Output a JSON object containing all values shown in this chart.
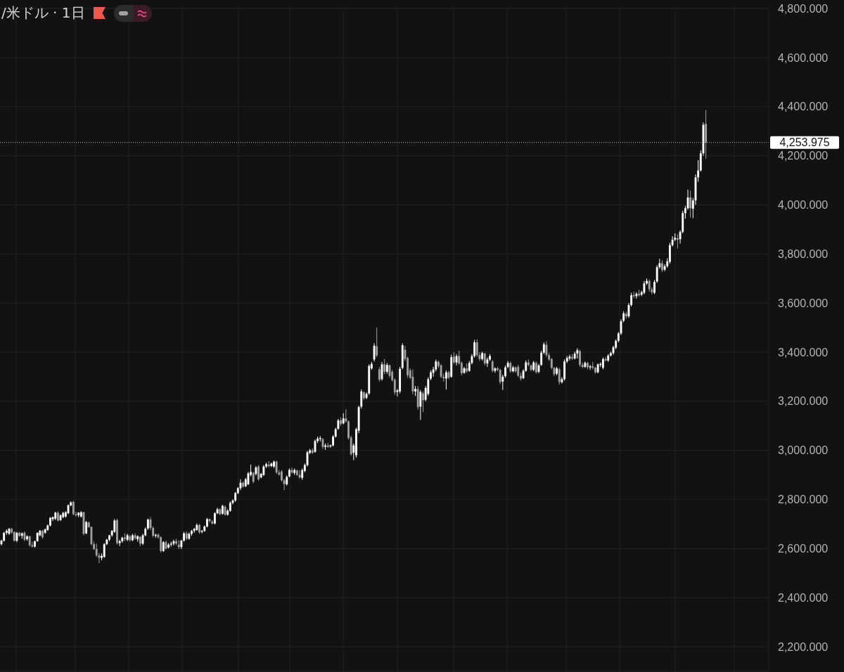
{
  "chart_data": {
    "type": "candlestick",
    "title": "/米ドル · 1日",
    "tick_labels": "y",
    "grid": true,
    "categories": [
      null,
      null,
      null,
      null,
      null,
      null,
      null,
      null,
      null,
      null,
      null,
      null,
      null,
      null,
      null,
      null,
      null,
      null,
      null,
      null,
      null,
      null,
      null,
      null,
      null,
      null,
      null,
      null,
      null,
      null,
      null,
      null,
      null,
      null,
      null,
      null,
      null,
      null,
      null,
      null,
      null,
      null,
      null,
      null,
      null,
      null,
      null,
      null,
      null,
      null,
      null,
      null,
      null,
      null,
      null,
      null,
      null,
      null,
      null,
      null,
      null,
      null,
      null,
      null,
      null,
      null,
      null,
      null,
      null,
      null,
      null,
      null,
      null,
      null,
      null,
      null,
      null,
      null,
      null,
      null,
      null,
      null,
      null,
      null,
      null,
      null,
      null,
      null,
      null,
      null,
      null,
      null,
      null,
      null,
      null,
      null,
      null,
      null,
      null,
      null,
      null,
      null,
      null,
      null,
      null,
      null,
      null,
      null,
      null,
      null,
      null,
      null,
      null,
      null,
      null,
      null,
      null,
      null,
      null,
      null,
      null,
      null,
      null,
      null,
      null,
      null,
      null,
      null,
      null,
      null,
      null,
      null,
      null,
      null,
      null,
      null,
      null,
      null,
      null,
      null,
      null,
      null,
      null,
      null,
      null,
      null,
      null,
      null,
      null,
      null,
      null,
      null,
      null,
      null,
      null,
      null,
      null,
      null,
      null,
      null,
      null,
      null,
      null,
      null,
      null,
      null,
      null,
      null,
      null,
      null,
      null,
      null,
      null,
      null,
      null,
      null,
      null,
      null,
      null,
      null,
      null,
      null,
      null,
      null,
      null,
      null,
      null,
      null,
      null,
      null,
      null,
      null,
      null,
      null,
      null,
      null,
      null,
      null,
      null,
      null,
      null,
      null,
      null,
      null,
      null,
      null,
      null,
      null,
      null,
      null,
      null,
      null,
      null,
      null,
      null,
      null,
      null,
      null,
      null,
      null,
      null,
      null,
      null,
      null,
      null,
      null,
      null,
      null,
      null,
      null,
      null,
      null,
      null,
      null,
      null,
      null,
      null,
      null,
      null,
      null,
      null,
      null,
      null,
      null,
      null,
      null,
      null,
      null,
      null,
      null,
      null,
      null,
      null,
      null,
      null,
      null,
      null,
      null,
      null,
      null,
      null,
      null,
      null,
      null,
      null,
      null,
      null,
      null,
      null,
      null,
      null,
      null,
      null,
      null,
      null,
      null,
      null,
      null,
      null,
      null,
      null,
      null,
      null,
      null,
      null,
      null,
      null,
      null,
      null,
      null,
      null,
      null,
      null,
      null,
      null,
      null,
      null,
      null,
      null
    ],
    "ohlc": [
      [
        2618,
        2636,
        2612,
        2632
      ],
      [
        2632,
        2668,
        2628,
        2664
      ],
      [
        2664,
        2678,
        2656,
        2672
      ],
      [
        2660,
        2684,
        2656,
        2680
      ],
      [
        2680,
        2684,
        2660,
        2666
      ],
      [
        2668,
        2670,
        2628,
        2632
      ],
      [
        2632,
        2668,
        2626,
        2664
      ],
      [
        2664,
        2668,
        2648,
        2652
      ],
      [
        2652,
        2666,
        2640,
        2662
      ],
      [
        2664,
        2670,
        2630,
        2636
      ],
      [
        2638,
        2654,
        2632,
        2650
      ],
      [
        2650,
        2652,
        2608,
        2614
      ],
      [
        2614,
        2628,
        2604,
        2608
      ],
      [
        2608,
        2632,
        2604,
        2630
      ],
      [
        2630,
        2666,
        2628,
        2664
      ],
      [
        2654,
        2676,
        2650,
        2672
      ],
      [
        2672,
        2676,
        2640,
        2646
      ],
      [
        2664,
        2682,
        2660,
        2678
      ],
      [
        2676,
        2698,
        2672,
        2694
      ],
      [
        2694,
        2728,
        2690,
        2725
      ],
      [
        2720,
        2730,
        2712,
        2728
      ],
      [
        2722,
        2750,
        2716,
        2746
      ],
      [
        2746,
        2752,
        2710,
        2714
      ],
      [
        2716,
        2740,
        2712,
        2735
      ],
      [
        2728,
        2750,
        2724,
        2745
      ],
      [
        2730,
        2752,
        2726,
        2748
      ],
      [
        2744,
        2780,
        2740,
        2776
      ],
      [
        2776,
        2792,
        2772,
        2788
      ],
      [
        2790,
        2794,
        2736,
        2740
      ],
      [
        2740,
        2750,
        2730,
        2736
      ],
      [
        2736,
        2748,
        2728,
        2746
      ],
      [
        2730,
        2752,
        2726,
        2748
      ],
      [
        2748,
        2750,
        2654,
        2660
      ],
      [
        2662,
        2712,
        2658,
        2708
      ],
      [
        2706,
        2710,
        2684,
        2688
      ],
      [
        2688,
        2690,
        2612,
        2618
      ],
      [
        2618,
        2628,
        2594,
        2598
      ],
      [
        2598,
        2620,
        2566,
        2572
      ],
      [
        2572,
        2582,
        2541,
        2562
      ],
      [
        2562,
        2580,
        2552,
        2570
      ],
      [
        2566,
        2622,
        2562,
        2618
      ],
      [
        2618,
        2640,
        2614,
        2636
      ],
      [
        2636,
        2656,
        2630,
        2654
      ],
      [
        2654,
        2675,
        2648,
        2672
      ],
      [
        2668,
        2720,
        2664,
        2714
      ],
      [
        2716,
        2722,
        2616,
        2622
      ],
      [
        2622,
        2636,
        2610,
        2630
      ],
      [
        2630,
        2648,
        2624,
        2644
      ],
      [
        2645,
        2662,
        2630,
        2640
      ],
      [
        2636,
        2660,
        2630,
        2654
      ],
      [
        2650,
        2656,
        2628,
        2634
      ],
      [
        2634,
        2660,
        2630,
        2654
      ],
      [
        2654,
        2662,
        2636,
        2642
      ],
      [
        2638,
        2654,
        2628,
        2650
      ],
      [
        2648,
        2650,
        2610,
        2620
      ],
      [
        2620,
        2660,
        2614,
        2654
      ],
      [
        2654,
        2686,
        2650,
        2680
      ],
      [
        2682,
        2722,
        2676,
        2718
      ],
      [
        2718,
        2728,
        2676,
        2684
      ],
      [
        2684,
        2690,
        2646,
        2652
      ],
      [
        2652,
        2660,
        2644,
        2656
      ],
      [
        2656,
        2662,
        2640,
        2646
      ],
      [
        2646,
        2650,
        2584,
        2590
      ],
      [
        2590,
        2630,
        2586,
        2626
      ],
      [
        2626,
        2632,
        2596,
        2600
      ],
      [
        2604,
        2622,
        2600,
        2616
      ],
      [
        2616,
        2628,
        2608,
        2620
      ],
      [
        2620,
        2636,
        2612,
        2630
      ],
      [
        2630,
        2640,
        2614,
        2620
      ],
      [
        2616,
        2634,
        2598,
        2606
      ],
      [
        2606,
        2636,
        2598,
        2632
      ],
      [
        2632,
        2668,
        2628,
        2662
      ],
      [
        2662,
        2670,
        2634,
        2640
      ],
      [
        2640,
        2666,
        2636,
        2660
      ],
      [
        2660,
        2676,
        2652,
        2672
      ],
      [
        2672,
        2684,
        2664,
        2680
      ],
      [
        2676,
        2702,
        2672,
        2696
      ],
      [
        2696,
        2700,
        2660,
        2666
      ],
      [
        2668,
        2676,
        2662,
        2672
      ],
      [
        2672,
        2694,
        2668,
        2690
      ],
      [
        2690,
        2724,
        2686,
        2720
      ],
      [
        2720,
        2722,
        2706,
        2712
      ],
      [
        2710,
        2716,
        2698,
        2702
      ],
      [
        2702,
        2748,
        2698,
        2744
      ],
      [
        2744,
        2766,
        2740,
        2760
      ],
      [
        2760,
        2764,
        2736,
        2740
      ],
      [
        2742,
        2778,
        2738,
        2774
      ],
      [
        2770,
        2776,
        2734,
        2738
      ],
      [
        2738,
        2760,
        2734,
        2754
      ],
      [
        2754,
        2792,
        2750,
        2786
      ],
      [
        2786,
        2800,
        2780,
        2796
      ],
      [
        2796,
        2830,
        2790,
        2826
      ],
      [
        2826,
        2850,
        2822,
        2846
      ],
      [
        2846,
        2882,
        2838,
        2868
      ],
      [
        2868,
        2874,
        2848,
        2852
      ],
      [
        2854,
        2888,
        2850,
        2882
      ],
      [
        2862,
        2912,
        2858,
        2906
      ],
      [
        2900,
        2942,
        2894,
        2912
      ],
      [
        2908,
        2912,
        2866,
        2872
      ],
      [
        2904,
        2936,
        2898,
        2930
      ],
      [
        2934,
        2940,
        2876,
        2882
      ],
      [
        2890,
        2908,
        2886,
        2904
      ],
      [
        2900,
        2940,
        2896,
        2934
      ],
      [
        2934,
        2950,
        2928,
        2944
      ],
      [
        2942,
        2956,
        2930,
        2936
      ],
      [
        2936,
        2950,
        2932,
        2946
      ],
      [
        2934,
        2958,
        2928,
        2954
      ],
      [
        2954,
        2958,
        2904,
        2910
      ],
      [
        2910,
        2920,
        2896,
        2902
      ],
      [
        2914,
        2920,
        2872,
        2878
      ],
      [
        2878,
        2884,
        2838,
        2862
      ],
      [
        2862,
        2898,
        2856,
        2892
      ],
      [
        2894,
        2926,
        2890,
        2920
      ],
      [
        2920,
        2930,
        2904,
        2910
      ],
      [
        2908,
        2926,
        2900,
        2920
      ],
      [
        2918,
        2922,
        2896,
        2900
      ],
      [
        2900,
        2920,
        2884,
        2890
      ],
      [
        2888,
        2926,
        2880,
        2920
      ],
      [
        2916,
        2946,
        2910,
        2940
      ],
      [
        2940,
        2998,
        2934,
        2992
      ],
      [
        2990,
        3006,
        2984,
        3000
      ],
      [
        3000,
        3008,
        2986,
        2990
      ],
      [
        2994,
        3044,
        2990,
        3038
      ],
      [
        3038,
        3056,
        3030,
        3048
      ],
      [
        3046,
        3058,
        3036,
        3050
      ],
      [
        3046,
        3050,
        3006,
        3014
      ],
      [
        3014,
        3028,
        3002,
        3020
      ],
      [
        3020,
        3030,
        3010,
        3014
      ],
      [
        3016,
        3024,
        3010,
        3020
      ],
      [
        3020,
        3062,
        3016,
        3056
      ],
      [
        3056,
        3092,
        3052,
        3086
      ],
      [
        3088,
        3128,
        3084,
        3122
      ],
      [
        3122,
        3134,
        3100,
        3108
      ],
      [
        3110,
        3152,
        3106,
        3130
      ],
      [
        3130,
        3167,
        3112,
        3118
      ],
      [
        3118,
        3122,
        3044,
        3050
      ],
      [
        3052,
        3060,
        2978,
        2984
      ],
      [
        2990,
        3028,
        2960,
        3020
      ],
      [
        2980,
        3092,
        2970,
        3086
      ],
      [
        3080,
        3182,
        3070,
        3176
      ],
      [
        3178,
        3248,
        3170,
        3240
      ],
      [
        3236,
        3240,
        3206,
        3212
      ],
      [
        3214,
        3236,
        3208,
        3230
      ],
      [
        3232,
        3350,
        3226,
        3344
      ],
      [
        3334,
        3360,
        3328,
        3352
      ],
      [
        3370,
        3436,
        3362,
        3426
      ],
      [
        3424,
        3500,
        3380,
        3386
      ],
      [
        3330,
        3340,
        3280,
        3288
      ],
      [
        3290,
        3360,
        3284,
        3350
      ],
      [
        3350,
        3372,
        3310,
        3320
      ],
      [
        3320,
        3356,
        3312,
        3348
      ],
      [
        3346,
        3350,
        3296,
        3304
      ],
      [
        3320,
        3328,
        3280,
        3286
      ],
      [
        3288,
        3294,
        3226,
        3236
      ],
      [
        3238,
        3250,
        3220,
        3244
      ],
      [
        3240,
        3340,
        3232,
        3332
      ],
      [
        3336,
        3436,
        3330,
        3428
      ],
      [
        3410,
        3426,
        3364,
        3372
      ],
      [
        3376,
        3382,
        3296,
        3306
      ],
      [
        3326,
        3334,
        3290,
        3296
      ],
      [
        3300,
        3330,
        3228,
        3240
      ],
      [
        3240,
        3262,
        3222,
        3250
      ],
      [
        3250,
        3262,
        3166,
        3176
      ],
      [
        3178,
        3246,
        3124,
        3238
      ],
      [
        3232,
        3240,
        3156,
        3204
      ],
      [
        3206,
        3262,
        3200,
        3254
      ],
      [
        3230,
        3298,
        3222,
        3290
      ],
      [
        3292,
        3326,
        3286,
        3318
      ],
      [
        3316,
        3340,
        3300,
        3330
      ],
      [
        3330,
        3370,
        3322,
        3362
      ],
      [
        3360,
        3366,
        3336,
        3344
      ],
      [
        3346,
        3352,
        3294,
        3300
      ],
      [
        3300,
        3312,
        3280,
        3294
      ],
      [
        3292,
        3326,
        3248,
        3318
      ],
      [
        3318,
        3324,
        3290,
        3296
      ],
      [
        3300,
        3390,
        3296,
        3380
      ],
      [
        3382,
        3400,
        3352,
        3358
      ],
      [
        3358,
        3392,
        3346,
        3384
      ],
      [
        3384,
        3406,
        3348,
        3354
      ],
      [
        3356,
        3362,
        3306,
        3314
      ],
      [
        3316,
        3340,
        3312,
        3334
      ],
      [
        3334,
        3354,
        3316,
        3322
      ],
      [
        3324,
        3364,
        3320,
        3356
      ],
      [
        3356,
        3392,
        3350,
        3384
      ],
      [
        3384,
        3450,
        3378,
        3440
      ],
      [
        3440,
        3452,
        3380,
        3388
      ],
      [
        3388,
        3400,
        3364,
        3372
      ],
      [
        3372,
        3402,
        3366,
        3396
      ],
      [
        3394,
        3398,
        3346,
        3354
      ],
      [
        3354,
        3378,
        3340,
        3370
      ],
      [
        3370,
        3392,
        3364,
        3384
      ],
      [
        3362,
        3368,
        3318,
        3324
      ],
      [
        3324,
        3338,
        3316,
        3334
      ],
      [
        3334,
        3340,
        3322,
        3328
      ],
      [
        3328,
        3332,
        3270,
        3278
      ],
      [
        3280,
        3308,
        3246,
        3300
      ],
      [
        3302,
        3346,
        3296,
        3338
      ],
      [
        3340,
        3364,
        3334,
        3356
      ],
      [
        3356,
        3362,
        3316,
        3322
      ],
      [
        3322,
        3344,
        3318,
        3338
      ],
      [
        3338,
        3342,
        3316,
        3322
      ],
      [
        3340,
        3348,
        3298,
        3304
      ],
      [
        3304,
        3316,
        3284,
        3292
      ],
      [
        3294,
        3330,
        3290,
        3324
      ],
      [
        3324,
        3366,
        3320,
        3358
      ],
      [
        3358,
        3370,
        3342,
        3348
      ],
      [
        3346,
        3350,
        3322,
        3328
      ],
      [
        3328,
        3364,
        3322,
        3358
      ],
      [
        3356,
        3362,
        3312,
        3318
      ],
      [
        3320,
        3352,
        3314,
        3346
      ],
      [
        3348,
        3406,
        3344,
        3398
      ],
      [
        3398,
        3440,
        3392,
        3432
      ],
      [
        3430,
        3444,
        3380,
        3388
      ],
      [
        3388,
        3396,
        3364,
        3370
      ],
      [
        3372,
        3376,
        3330,
        3336
      ],
      [
        3336,
        3340,
        3302,
        3310
      ],
      [
        3312,
        3340,
        3306,
        3334
      ],
      [
        3330,
        3336,
        3268,
        3278
      ],
      [
        3278,
        3298,
        3272,
        3290
      ],
      [
        3290,
        3370,
        3284,
        3362
      ],
      [
        3362,
        3384,
        3356,
        3376
      ],
      [
        3374,
        3390,
        3366,
        3382
      ],
      [
        3380,
        3392,
        3368,
        3374
      ],
      [
        3374,
        3402,
        3370,
        3394
      ],
      [
        3394,
        3416,
        3374,
        3408
      ],
      [
        3404,
        3410,
        3340,
        3348
      ],
      [
        3348,
        3358,
        3334,
        3340
      ],
      [
        3340,
        3362,
        3336,
        3356
      ],
      [
        3356,
        3360,
        3330,
        3338
      ],
      [
        3338,
        3348,
        3328,
        3342
      ],
      [
        3342,
        3360,
        3330,
        3336
      ],
      [
        3336,
        3340,
        3312,
        3318
      ],
      [
        3318,
        3354,
        3314,
        3350
      ],
      [
        3348,
        3358,
        3340,
        3352
      ],
      [
        3336,
        3378,
        3330,
        3372
      ],
      [
        3372,
        3380,
        3362,
        3366
      ],
      [
        3366,
        3392,
        3360,
        3386
      ],
      [
        3386,
        3402,
        3382,
        3396
      ],
      [
        3396,
        3426,
        3390,
        3420
      ],
      [
        3418,
        3452,
        3412,
        3446
      ],
      [
        3446,
        3482,
        3440,
        3476
      ],
      [
        3476,
        3534,
        3470,
        3526
      ],
      [
        3528,
        3566,
        3522,
        3558
      ],
      [
        3556,
        3564,
        3536,
        3546
      ],
      [
        3546,
        3600,
        3540,
        3592
      ],
      [
        3592,
        3642,
        3586,
        3632
      ],
      [
        3632,
        3646,
        3620,
        3628
      ],
      [
        3628,
        3644,
        3618,
        3638
      ],
      [
        3638,
        3654,
        3626,
        3632
      ],
      [
        3634,
        3650,
        3628,
        3644
      ],
      [
        3642,
        3690,
        3636,
        3680
      ],
      [
        3680,
        3700,
        3674,
        3690
      ],
      [
        3690,
        3696,
        3646,
        3656
      ],
      [
        3656,
        3664,
        3636,
        3644
      ],
      [
        3642,
        3694,
        3636,
        3686
      ],
      [
        3688,
        3754,
        3682,
        3746
      ],
      [
        3746,
        3780,
        3740,
        3762
      ],
      [
        3762,
        3774,
        3726,
        3734
      ],
      [
        3736,
        3758,
        3730,
        3750
      ],
      [
        3750,
        3782,
        3744,
        3770
      ],
      [
        3768,
        3846,
        3760,
        3836
      ],
      [
        3836,
        3872,
        3830,
        3858
      ],
      [
        3858,
        3884,
        3852,
        3866
      ],
      [
        3864,
        3880,
        3822,
        3858
      ],
      [
        3860,
        3896,
        3842,
        3890
      ],
      [
        3890,
        3976,
        3884,
        3966
      ],
      [
        3966,
        3996,
        3944,
        3986
      ],
      [
        3986,
        4062,
        3980,
        4030
      ],
      [
        4030,
        4058,
        3948,
        3986
      ],
      [
        3984,
        4028,
        3946,
        4018
      ],
      [
        4018,
        4124,
        4000,
        4112
      ],
      [
        4112,
        4182,
        4094,
        4140
      ],
      [
        4140,
        4222,
        4136,
        4210
      ],
      [
        4210,
        4336,
        4200,
        4326
      ],
      [
        4330,
        4386,
        4188,
        4254
      ],
      null,
      null,
      null,
      null,
      null,
      null,
      null,
      null,
      null,
      null,
      null,
      null,
      null,
      null,
      null,
      null,
      null,
      null,
      null,
      null,
      null,
      null,
      null,
      null
    ],
    "colors": [
      "#ffffff",
      "#ffffff",
      "#ffffff",
      "#ffffff",
      "#a0a0a0",
      "#a0a0a0",
      "#ffffff",
      "#a0a0a0",
      "#ffffff",
      "#a0a0a0",
      "#ffffff",
      "#a0a0a0",
      "#a0a0a0",
      "#ffffff",
      "#ffffff",
      "#ffffff",
      "#a0a0a0",
      "#ffffff",
      "#ffffff",
      "#ffffff",
      "#ffffff",
      "#ffffff",
      "#a0a0a0",
      "#ffffff",
      "#ffffff",
      "#ffffff",
      "#ffffff",
      "#ffffff",
      "#a0a0a0",
      "#a0a0a0",
      "#ffffff",
      "#ffffff",
      "#a0a0a0",
      "#ffffff",
      "#a0a0a0",
      "#a0a0a0",
      "#a0a0a0",
      "#a0a0a0",
      "#a0a0a0",
      "#ffffff",
      "#ffffff",
      "#ffffff",
      "#ffffff",
      "#ffffff",
      "#ffffff",
      "#a0a0a0",
      "#ffffff",
      "#ffffff",
      "#a0a0a0",
      "#ffffff",
      "#a0a0a0",
      "#ffffff",
      "#a0a0a0",
      "#ffffff",
      "#a0a0a0",
      "#ffffff",
      "#ffffff",
      "#ffffff",
      "#a0a0a0",
      "#a0a0a0",
      "#ffffff",
      "#a0a0a0",
      "#a0a0a0",
      "#ffffff",
      "#a0a0a0",
      "#ffffff",
      "#ffffff",
      "#ffffff",
      "#a0a0a0",
      "#a0a0a0",
      "#ffffff",
      "#ffffff",
      "#a0a0a0",
      "#ffffff",
      "#ffffff",
      "#ffffff",
      "#ffffff",
      "#a0a0a0",
      "#ffffff",
      "#ffffff",
      "#ffffff",
      "#a0a0a0",
      "#a0a0a0",
      "#ffffff",
      "#ffffff",
      "#a0a0a0",
      "#ffffff",
      "#a0a0a0",
      "#ffffff",
      "#ffffff",
      "#ffffff",
      "#ffffff",
      "#ffffff",
      "#ffffff",
      "#a0a0a0",
      "#ffffff",
      "#ffffff",
      "#ffffff",
      "#a0a0a0",
      "#ffffff",
      "#a0a0a0",
      "#ffffff",
      "#ffffff",
      "#ffffff",
      "#a0a0a0",
      "#ffffff",
      "#ffffff",
      "#a0a0a0",
      "#a0a0a0",
      "#a0a0a0",
      "#a0a0a0",
      "#ffffff",
      "#ffffff",
      "#a0a0a0",
      "#ffffff",
      "#a0a0a0",
      "#a0a0a0",
      "#ffffff",
      "#ffffff",
      "#ffffff",
      "#ffffff",
      "#a0a0a0",
      "#ffffff",
      "#ffffff",
      "#ffffff",
      "#a0a0a0",
      "#ffffff",
      "#a0a0a0",
      "#ffffff",
      "#ffffff",
      "#ffffff",
      "#ffffff",
      "#a0a0a0",
      "#ffffff",
      "#a0a0a0",
      "#a0a0a0",
      "#a0a0a0",
      "#ffffff",
      "#ffffff",
      "#ffffff",
      "#ffffff",
      "#a0a0a0",
      "#ffffff",
      "#ffffff",
      "#ffffff",
      "#ffffff",
      "#a0a0a0",
      "#a0a0a0",
      "#ffffff",
      "#a0a0a0",
      "#ffffff",
      "#a0a0a0",
      "#a0a0a0",
      "#a0a0a0",
      "#ffffff",
      "#ffffff",
      "#ffffff",
      "#a0a0a0",
      "#a0a0a0",
      "#a0a0a0",
      "#a0a0a0",
      "#ffffff",
      "#a0a0a0",
      "#ffffff",
      "#a0a0a0",
      "#ffffff",
      "#ffffff",
      "#ffffff",
      "#ffffff",
      "#ffffff",
      "#a0a0a0",
      "#a0a0a0",
      "#a0a0a0",
      "#ffffff",
      "#a0a0a0",
      "#ffffff",
      "#a0a0a0",
      "#ffffff",
      "#a0a0a0",
      "#a0a0a0",
      "#ffffff",
      "#a0a0a0",
      "#ffffff",
      "#ffffff",
      "#ffffff",
      "#a0a0a0",
      "#a0a0a0",
      "#ffffff",
      "#a0a0a0",
      "#ffffff",
      "#ffffff",
      "#a0a0a0",
      "#ffffff",
      "#a0a0a0",
      "#a0a0a0",
      "#ffffff",
      "#ffffff",
      "#ffffff",
      "#a0a0a0",
      "#ffffff",
      "#a0a0a0",
      "#a0a0a0",
      "#a0a0a0",
      "#ffffff",
      "#ffffff",
      "#a0a0a0",
      "#a0a0a0",
      "#ffffff",
      "#a0a0a0",
      "#ffffff",
      "#ffffff",
      "#ffffff",
      "#a0a0a0",
      "#a0a0a0",
      "#a0a0a0",
      "#a0a0a0",
      "#ffffff",
      "#a0a0a0",
      "#ffffff",
      "#ffffff",
      "#ffffff",
      "#ffffff",
      "#a0a0a0",
      "#ffffff",
      "#ffffff",
      "#a0a0a0",
      "#a0a0a0",
      "#ffffff",
      "#a0a0a0",
      "#ffffff",
      "#a0a0a0",
      "#a0a0a0",
      "#ffffff",
      "#ffffff",
      "#ffffff",
      "#a0a0a0",
      "#ffffff",
      "#ffffff",
      "#ffffff",
      "#ffffff",
      "#ffffff",
      "#ffffff",
      "#ffffff",
      "#a0a0a0",
      "#ffffff",
      "#ffffff",
      "#a0a0a0",
      "#ffffff",
      "#a0a0a0",
      "#ffffff",
      "#ffffff",
      "#ffffff",
      "#a0a0a0",
      "#a0a0a0",
      "#ffffff",
      "#ffffff",
      "#ffffff",
      "#a0a0a0",
      "#ffffff",
      "#ffffff",
      "#ffffff",
      "#ffffff",
      "#ffffff",
      "#a0a0a0",
      "#ffffff",
      "#ffffff",
      "#ffffff",
      "#ffffff",
      "#a0a0a0",
      "#ffffff",
      "#ffffff",
      "#ffffff",
      "#ffffff",
      "#ffffff",
      "#a0a0a0",
      null,
      null,
      null,
      null,
      null,
      null,
      null,
      null,
      null,
      null,
      null,
      null,
      null,
      null,
      null,
      null,
      null,
      null,
      null,
      null,
      null,
      null,
      null,
      null
    ],
    "ylim": [
      2100,
      4800
    ],
    "yticks": [
      {
        "value": 2200,
        "label": "2,200.000"
      },
      {
        "value": 2400,
        "label": "2,400.000"
      },
      {
        "value": 2600,
        "label": "2,600.000"
      },
      {
        "value": 2800,
        "label": "2,800.000"
      },
      {
        "value": 3000,
        "label": "3,000.000"
      },
      {
        "value": 3200,
        "label": "3,200.000"
      },
      {
        "value": 3400,
        "label": "3,400.000"
      },
      {
        "value": 3600,
        "label": "3,600.000"
      },
      {
        "value": 3800,
        "label": "3,800.000"
      },
      {
        "value": 4000,
        "label": "4,000.000"
      },
      {
        "value": 4200,
        "label": "4,200.000"
      },
      {
        "value": 4400,
        "label": "4,400.000"
      },
      {
        "value": 4600,
        "label": "4,600.000"
      },
      {
        "value": 4800,
        "label": "4,800.000"
      }
    ],
    "ref_lines": [
      {
        "axis": "y",
        "value": 4253.975,
        "label": "4,253.975",
        "line_style": "dotted",
        "color": "#c8c8c8"
      }
    ]
  }
}
